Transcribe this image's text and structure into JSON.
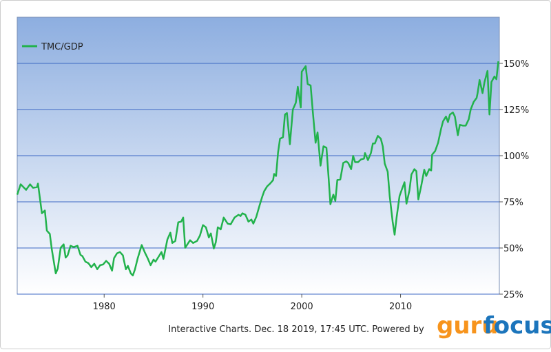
{
  "chart_data": {
    "type": "line",
    "source": "Interactive Charts. Dec. 18 2019, 17:45 UTC. Powered by",
    "brand": [
      "guru",
      "focus"
    ],
    "xlim": [
      1971.2,
      2020
    ],
    "xticks": [
      1980,
      1990,
      2000,
      2010
    ],
    "ylim": [
      25,
      175
    ],
    "yticks": [
      {
        "value": 25,
        "label": "25%"
      },
      {
        "value": 50,
        "label": "50%"
      },
      {
        "value": 75,
        "label": "75%"
      },
      {
        "value": 100,
        "label": "100%"
      },
      {
        "value": 125,
        "label": "125%"
      },
      {
        "value": 150,
        "label": "150%"
      }
    ],
    "grid": true,
    "legend": "top-left",
    "x": [
      1971.2,
      1971.55,
      1972.1,
      1972.5,
      1972.8,
      1973.2,
      1973.3,
      1973.7,
      1974.0,
      1974.2,
      1974.5,
      1974.7,
      1975.1,
      1975.3,
      1975.6,
      1975.9,
      1976.1,
      1976.3,
      1976.6,
      1976.9,
      1977.3,
      1977.6,
      1977.8,
      1978.1,
      1978.4,
      1978.7,
      1979.0,
      1979.3,
      1979.6,
      1979.9,
      1980.2,
      1980.5,
      1980.8,
      1981.0,
      1981.3,
      1981.6,
      1981.9,
      1982.0,
      1982.2,
      1982.4,
      1982.7,
      1982.9,
      1983.1,
      1983.4,
      1983.8,
      1984.1,
      1984.4,
      1984.7,
      1985.0,
      1985.2,
      1985.5,
      1985.8,
      1986.0,
      1986.4,
      1986.7,
      1986.9,
      1987.2,
      1987.5,
      1987.8,
      1988.0,
      1988.2,
      1988.7,
      1989.0,
      1989.4,
      1989.7,
      1990.0,
      1990.3,
      1990.6,
      1990.8,
      1991.1,
      1991.3,
      1991.5,
      1991.8,
      1992.1,
      1992.5,
      1992.8,
      1993.2,
      1993.6,
      1993.8,
      1994.0,
      1994.3,
      1994.6,
      1994.9,
      1995.1,
      1995.4,
      1995.7,
      1996.0,
      1996.2,
      1996.5,
      1996.8,
      1997.1,
      1997.2,
      1997.4,
      1997.6,
      1997.8,
      1998.1,
      1998.3,
      1998.5,
      1998.8,
      1999.1,
      1999.4,
      1999.6,
      1999.9,
      2000.0,
      2000.4,
      2000.6,
      2000.9,
      2001.1,
      2001.4,
      2001.6,
      2001.9,
      2002.2,
      2002.5,
      2002.7,
      2002.9,
      2003.2,
      2003.4,
      2003.6,
      2003.9,
      2004.2,
      2004.5,
      2004.7,
      2005.0,
      2005.2,
      2005.4,
      2005.7,
      2006.0,
      2006.3,
      2006.4,
      2006.7,
      2007.0,
      2007.2,
      2007.4,
      2007.7,
      2008.0,
      2008.2,
      2008.4,
      2008.7,
      2008.9,
      2009.2,
      2009.4,
      2009.6,
      2009.9,
      2010.1,
      2010.4,
      2010.6,
      2010.9,
      2011.1,
      2011.4,
      2011.6,
      2011.8,
      2012.1,
      2012.4,
      2012.6,
      2012.9,
      2013.1,
      2013.2,
      2013.5,
      2013.8,
      2014.1,
      2014.3,
      2014.6,
      2014.8,
      2015.0,
      2015.3,
      2015.5,
      2015.8,
      2016.0,
      2016.3,
      2016.6,
      2016.9,
      2017.1,
      2017.4,
      2017.7,
      2017.8,
      2018.0,
      2018.3,
      2018.5,
      2018.8,
      2019.0,
      2019.2,
      2019.5,
      2019.7,
      2019.9
    ],
    "series": [
      {
        "name": "TMC/GDP",
        "color": "#22b24c",
        "values": [
          78.9,
          84.5,
          81.5,
          84.5,
          82.6,
          83,
          84.9,
          68.8,
          70.3,
          59.4,
          57.6,
          49.3,
          36.2,
          38.8,
          50.1,
          52,
          44.8,
          46,
          51.2,
          50.5,
          51.2,
          46.3,
          45.6,
          42.6,
          41.8,
          39.6,
          41.5,
          38.5,
          40.7,
          41.1,
          43,
          41.5,
          37.7,
          44.5,
          47.1,
          47.8,
          46,
          43.3,
          38.5,
          40.3,
          36.2,
          35.1,
          38.1,
          44.5,
          51.6,
          47.8,
          44.5,
          40.7,
          43.7,
          42.6,
          45.2,
          47.8,
          44.1,
          54.6,
          58.3,
          52.7,
          53.8,
          63.9,
          64.3,
          66.5,
          50.1,
          54.2,
          52.7,
          53.8,
          56.8,
          62.4,
          61.2,
          55.7,
          57.9,
          49.7,
          53.1,
          61.2,
          60.1,
          66.5,
          63.2,
          62.8,
          66.5,
          68,
          67.3,
          68.8,
          68,
          64.3,
          65.4,
          63.2,
          66.9,
          72.5,
          77.8,
          80.8,
          83.4,
          84.9,
          86.8,
          90.1,
          89,
          101.7,
          109.2,
          110,
          122.3,
          123.1,
          106.2,
          125,
          128.7,
          137.3,
          126.1,
          145.5,
          148.5,
          138.8,
          138,
          125,
          107,
          112.6,
          94.6,
          105.1,
          104.3,
          89.4,
          73.7,
          78.9,
          75.5,
          86.8,
          87.1,
          96.1,
          96.9,
          96.1,
          92.7,
          99.9,
          96.5,
          96.5,
          98,
          98.4,
          101.4,
          97.6,
          101.4,
          106.6,
          106.6,
          110.7,
          109.2,
          105.1,
          95.7,
          91.3,
          78.2,
          64.3,
          57.2,
          66.5,
          78.2,
          81.2,
          85.6,
          74,
          81.2,
          89.8,
          92.7,
          91.6,
          76.3,
          83.8,
          92.4,
          89,
          92.7,
          92,
          100.6,
          102.5,
          107,
          114.5,
          118.6,
          121.2,
          118.2,
          122.3,
          123.4,
          121.2,
          111.1,
          116.7,
          116.3,
          116.3,
          119.7,
          125,
          129.1,
          131.3,
          133.9,
          141,
          133.9,
          139.9,
          145.9,
          122.3,
          139.9,
          142.9,
          141.4,
          151.1
        ]
      }
    ]
  }
}
